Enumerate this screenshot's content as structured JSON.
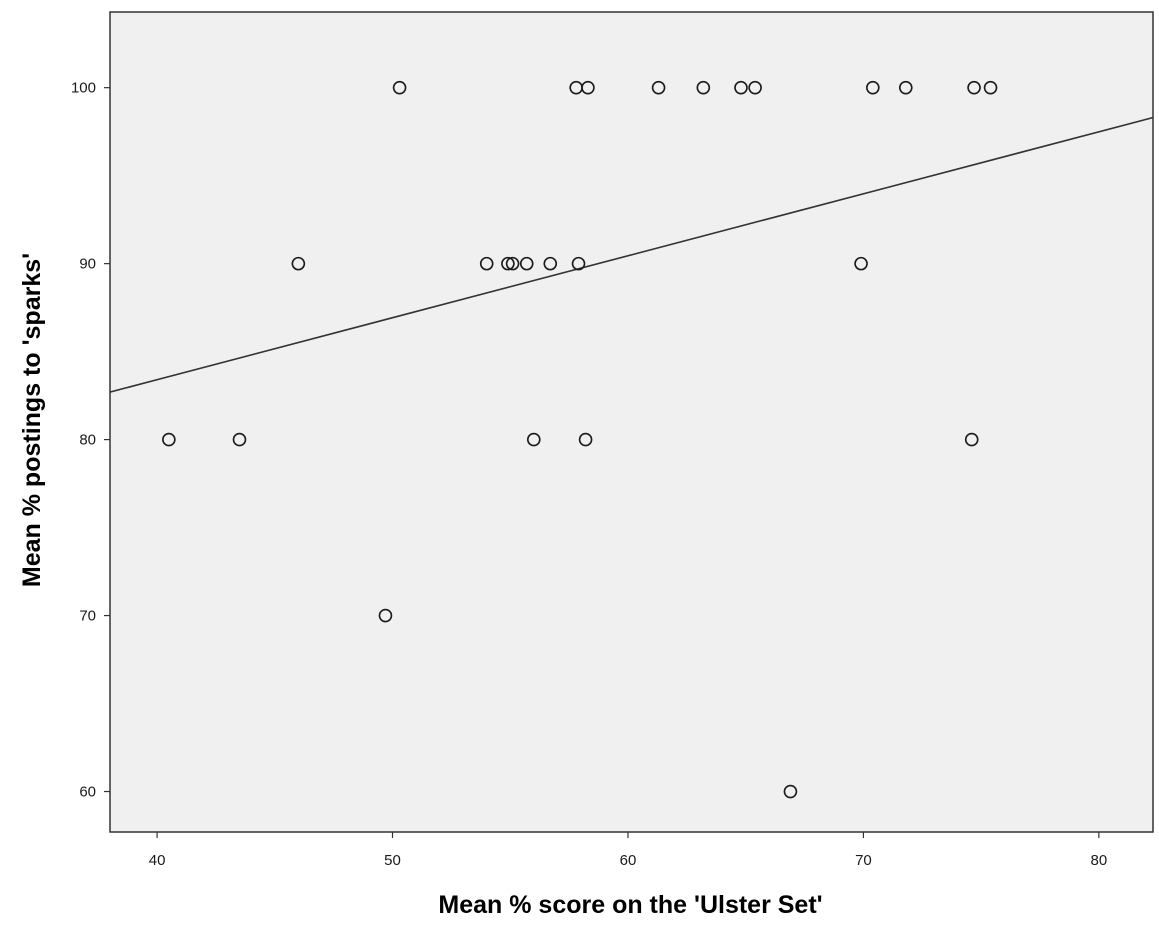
{
  "chart_data": {
    "type": "scatter",
    "title": "",
    "xlabel": "Mean % score on the 'Ulster Set'",
    "ylabel": "Mean % postings to 'sparks'",
    "xlim": [
      38,
      82.3
    ],
    "ylim": [
      57.7,
      104.3
    ],
    "xticks": [
      40,
      50,
      60,
      70,
      80
    ],
    "yticks": [
      60,
      70,
      80,
      90,
      100
    ],
    "grid": false,
    "legend": "none",
    "colors": {
      "plot_background": "#f0f0f0",
      "frame": "#333333",
      "marker_edge": "#1a1a1a",
      "fit_line": "#333333"
    },
    "points": [
      {
        "x": 50.3,
        "y": 100
      },
      {
        "x": 57.8,
        "y": 100
      },
      {
        "x": 58.3,
        "y": 100
      },
      {
        "x": 61.3,
        "y": 100
      },
      {
        "x": 63.2,
        "y": 100
      },
      {
        "x": 64.8,
        "y": 100
      },
      {
        "x": 65.4,
        "y": 100
      },
      {
        "x": 70.4,
        "y": 100
      },
      {
        "x": 71.8,
        "y": 100
      },
      {
        "x": 74.7,
        "y": 100
      },
      {
        "x": 75.4,
        "y": 100
      },
      {
        "x": 46.0,
        "y": 90
      },
      {
        "x": 54.0,
        "y": 90
      },
      {
        "x": 54.9,
        "y": 90
      },
      {
        "x": 55.1,
        "y": 90
      },
      {
        "x": 55.7,
        "y": 90
      },
      {
        "x": 56.7,
        "y": 90
      },
      {
        "x": 57.9,
        "y": 90
      },
      {
        "x": 69.9,
        "y": 90
      },
      {
        "x": 40.5,
        "y": 80
      },
      {
        "x": 43.5,
        "y": 80
      },
      {
        "x": 56.0,
        "y": 80
      },
      {
        "x": 58.2,
        "y": 80
      },
      {
        "x": 74.6,
        "y": 80
      },
      {
        "x": 49.7,
        "y": 70
      },
      {
        "x": 66.9,
        "y": 60
      }
    ],
    "fit_line": {
      "x": [
        38,
        82.3
      ],
      "y": [
        82.7,
        98.3
      ]
    }
  }
}
